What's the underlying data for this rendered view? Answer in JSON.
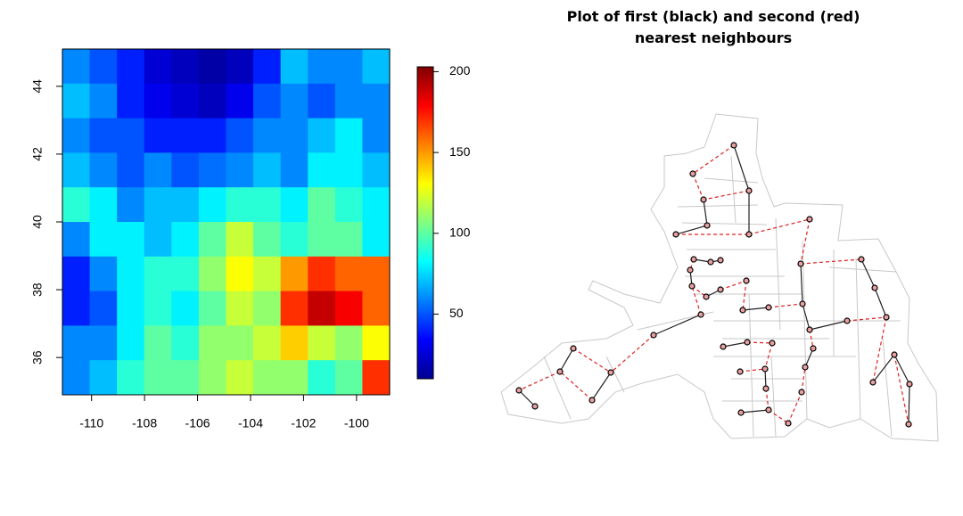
{
  "chart_data": [
    {
      "type": "heatmap",
      "xlim": [
        -111.1,
        -98.75
      ],
      "ylim": [
        34.9,
        45.1
      ],
      "xticks": [
        -110,
        -108,
        -106,
        -104,
        -102,
        -100
      ],
      "yticks": [
        36,
        38,
        40,
        42,
        44
      ],
      "clim": [
        10,
        203
      ],
      "cticks": [
        50,
        100,
        150,
        200
      ],
      "palette": [
        "#00008f",
        "#0000ff",
        "#0080ff",
        "#00ffff",
        "#80ff80",
        "#ffff00",
        "#ff8000",
        "#ff0000",
        "#800000"
      ],
      "z": [
        [
          60,
          50,
          40,
          25,
          20,
          15,
          20,
          40,
          70,
          60,
          60,
          70
        ],
        [
          70,
          60,
          40,
          30,
          25,
          20,
          30,
          50,
          60,
          50,
          60,
          60
        ],
        [
          60,
          50,
          50,
          40,
          40,
          40,
          50,
          60,
          60,
          70,
          80,
          60
        ],
        [
          70,
          60,
          50,
          60,
          50,
          55,
          60,
          70,
          60,
          80,
          80,
          70
        ],
        [
          90,
          80,
          60,
          70,
          70,
          80,
          90,
          90,
          80,
          100,
          90,
          80
        ],
        [
          60,
          80,
          80,
          70,
          80,
          100,
          120,
          100,
          90,
          100,
          100,
          80
        ],
        [
          40,
          60,
          80,
          90,
          90,
          110,
          130,
          120,
          150,
          170,
          160,
          160
        ],
        [
          40,
          50,
          80,
          90,
          80,
          100,
          120,
          110,
          170,
          190,
          180,
          160
        ],
        [
          60,
          60,
          80,
          100,
          90,
          110,
          110,
          120,
          140,
          120,
          110,
          130
        ],
        [
          60,
          70,
          90,
          100,
          100,
          110,
          120,
          110,
          110,
          90,
          100,
          170
        ]
      ]
    },
    {
      "type": "map",
      "title": [
        "Plot of first (black) and second (red)",
        "nearest neighbours"
      ]
    }
  ]
}
